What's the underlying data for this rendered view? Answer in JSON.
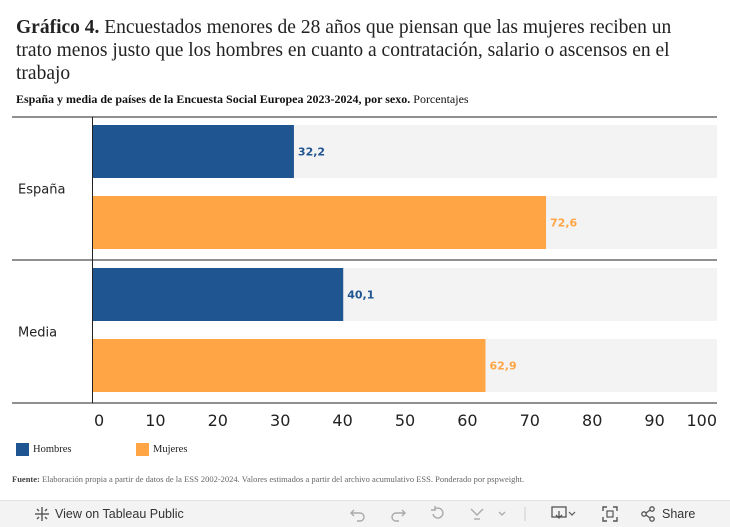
{
  "header": {
    "title_lead": "Gráfico 4.",
    "title_rest": "Encuestados menores de 28 años que piensan que las mujeres reciben un trato menos justo que los hombres en cuanto a contratación, salario o ascensos en el trabajo",
    "subtitle_bold": "España y media de países de la Encuesta Social Europea 2023-2024, por sexo.",
    "subtitle_rest": "Porcentajes"
  },
  "chart_data": {
    "type": "bar",
    "orientation": "horizontal",
    "categories": [
      "España",
      "Media"
    ],
    "series": [
      {
        "name": "Hombres",
        "values": [
          32.2,
          40.1
        ],
        "labels": [
          "32,2",
          "40,1"
        ],
        "color": "#1f5591"
      },
      {
        "name": "Mujeres",
        "values": [
          72.6,
          62.9
        ],
        "labels": [
          "72,6",
          "62,9"
        ],
        "color": "#ffa545"
      }
    ],
    "xlim": [
      0,
      100
    ],
    "xticks": [
      0,
      10,
      20,
      30,
      40,
      50,
      60,
      70,
      80,
      90,
      100
    ],
    "track_color": "#f3f3f3",
    "legend_position": "bottom-left"
  },
  "legend": {
    "hombres": "Hombres",
    "mujeres": "Mujeres"
  },
  "source": {
    "label": "Fuente:",
    "text": "Elaboración propia a partir de datos de la ESS 2002-2024. Valores estimados a partir del archivo acumulativo ESS. Ponderado por  pspweight."
  },
  "footer": {
    "view_label": "View on Tableau Public",
    "share_label": "Share"
  }
}
